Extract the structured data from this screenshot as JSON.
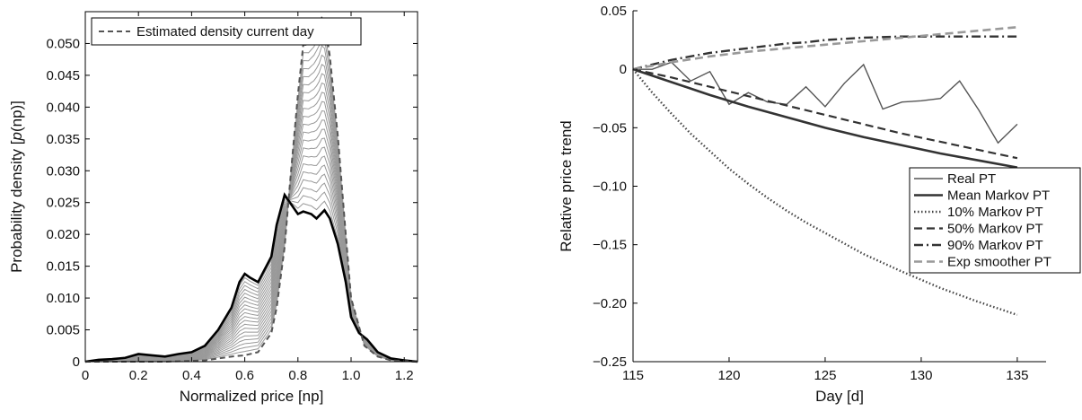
{
  "chart_data": [
    {
      "type": "line",
      "xlabel": "Normalized price [np]",
      "ylabel_prefix": "Probability density [",
      "ylabel_italic": "p",
      "ylabel_suffix": "(np)]",
      "xlim": [
        0,
        1.25
      ],
      "ylim": [
        0,
        0.055
      ],
      "xticks": [
        0,
        0.2,
        0.4,
        0.6,
        0.8,
        1.0,
        1.2
      ],
      "xtick_labels": [
        "0",
        "0.2",
        "0.4",
        "0.6",
        "0.8",
        "1.0",
        "1.2"
      ],
      "yticks": [
        0,
        0.005,
        0.01,
        0.015,
        0.02,
        0.025,
        0.03,
        0.035,
        0.04,
        0.045,
        0.05
      ],
      "ytick_labels": [
        "0",
        "0.005",
        "0.010",
        "0.015",
        "0.020",
        "0.025",
        "0.030",
        "0.035",
        "0.040",
        "0.045",
        "0.050"
      ],
      "legend_position": "top-left",
      "intermediate_curve_count": 20,
      "colors": {
        "initial": "#000000",
        "intermediate": "#999999",
        "current": "#555555"
      },
      "series": [
        {
          "name": "",
          "style": "solid-thick",
          "x": [
            0,
            0.05,
            0.1,
            0.15,
            0.2,
            0.25,
            0.3,
            0.35,
            0.4,
            0.45,
            0.5,
            0.55,
            0.58,
            0.6,
            0.62,
            0.65,
            0.7,
            0.72,
            0.75,
            0.77,
            0.8,
            0.82,
            0.85,
            0.87,
            0.9,
            0.92,
            0.95,
            0.98,
            1.0,
            1.03,
            1.06,
            1.1,
            1.15,
            1.2,
            1.25
          ],
          "y": [
            0,
            0.0003,
            0.0004,
            0.0006,
            0.0012,
            0.001,
            0.0008,
            0.0012,
            0.0015,
            0.0025,
            0.005,
            0.0085,
            0.0125,
            0.0138,
            0.0132,
            0.0125,
            0.0165,
            0.0215,
            0.0262,
            0.025,
            0.0232,
            0.0236,
            0.0232,
            0.0225,
            0.0238,
            0.0225,
            0.0185,
            0.0125,
            0.007,
            0.0045,
            0.0035,
            0.0015,
            0.0005,
            0.0002,
            0
          ]
        },
        {
          "name": "Estimated density current day",
          "style": "dashed",
          "x": [
            0,
            0.3,
            0.45,
            0.5,
            0.55,
            0.6,
            0.65,
            0.7,
            0.72,
            0.75,
            0.77,
            0.8,
            0.82,
            0.84,
            0.86,
            0.88,
            0.89,
            0.9,
            0.92,
            0.95,
            0.98,
            1.0,
            1.05,
            1.1,
            1.15,
            1.25
          ],
          "y": [
            0,
            0,
            0.0002,
            0.0005,
            0.0008,
            0.001,
            0.0015,
            0.0045,
            0.0085,
            0.018,
            0.028,
            0.042,
            0.0498,
            0.0498,
            0.0508,
            0.0525,
            0.054,
            0.0535,
            0.048,
            0.0355,
            0.02,
            0.01,
            0.0025,
            0.0008,
            0.0002,
            0
          ]
        }
      ]
    },
    {
      "type": "line",
      "xlabel": "Day [d]",
      "ylabel": "Relative price trend",
      "xlim": [
        115,
        136.5
      ],
      "ylim": [
        -0.25,
        0.05
      ],
      "xticks": [
        115,
        120,
        125,
        130,
        135
      ],
      "xtick_labels": [
        "115",
        "120",
        "125",
        "130",
        "135"
      ],
      "yticks": [
        -0.25,
        -0.2,
        -0.15,
        -0.1,
        -0.05,
        0,
        0.05
      ],
      "ytick_labels": [
        "−0.25",
        "−0.20",
        "−0.15",
        "−0.10",
        "−0.05",
        "0",
        "0.05"
      ],
      "legend_position": "right",
      "series": [
        {
          "name": "Real PT",
          "style": "solid-thin",
          "color": "#555555",
          "x": [
            115,
            116,
            117,
            118,
            119,
            120,
            121,
            122,
            123,
            124,
            125,
            126,
            127,
            128,
            129,
            130,
            131,
            132,
            133,
            134,
            135
          ],
          "y": [
            0,
            0,
            0.006,
            -0.01,
            -0.002,
            -0.03,
            -0.02,
            -0.028,
            -0.03,
            -0.015,
            -0.032,
            -0.012,
            0.004,
            -0.034,
            -0.028,
            -0.027,
            -0.025,
            -0.01,
            -0.035,
            -0.063,
            -0.047
          ]
        },
        {
          "name": "Mean Markov PT",
          "style": "solid-thick",
          "color": "#333333",
          "x": [
            115,
            117,
            119,
            121,
            123,
            125,
            127,
            129,
            131,
            133,
            135
          ],
          "y": [
            0,
            -0.011,
            -0.022,
            -0.032,
            -0.041,
            -0.05,
            -0.058,
            -0.065,
            -0.072,
            -0.078,
            -0.084
          ]
        },
        {
          "name": "10% Markov PT",
          "style": "dotted",
          "color": "#444444",
          "x": [
            115,
            116,
            117,
            118,
            119,
            120,
            121,
            122,
            123,
            124,
            125,
            127,
            129,
            131,
            133,
            135
          ],
          "y": [
            0,
            -0.02,
            -0.038,
            -0.055,
            -0.07,
            -0.085,
            -0.098,
            -0.11,
            -0.121,
            -0.131,
            -0.14,
            -0.158,
            -0.173,
            -0.187,
            -0.199,
            -0.21
          ]
        },
        {
          "name": "50% Markov PT",
          "style": "dashed",
          "color": "#333333",
          "x": [
            115,
            117,
            119,
            121,
            123,
            125,
            127,
            129,
            131,
            133,
            135
          ],
          "y": [
            0,
            -0.007,
            -0.015,
            -0.023,
            -0.031,
            -0.039,
            -0.047,
            -0.055,
            -0.062,
            -0.069,
            -0.076
          ]
        },
        {
          "name": "90% Markov PT",
          "style": "dashdot",
          "color": "#333333",
          "x": [
            115,
            116,
            117,
            118,
            119,
            120,
            121,
            122,
            123,
            124,
            125,
            127,
            129,
            131,
            133,
            135
          ],
          "y": [
            0,
            0.004,
            0.008,
            0.011,
            0.014,
            0.016,
            0.018,
            0.02,
            0.022,
            0.023,
            0.025,
            0.027,
            0.028,
            0.028,
            0.028,
            0.028
          ]
        },
        {
          "name": "Exp smoother PT",
          "style": "dashed-light",
          "color": "#999999",
          "x": [
            115,
            117,
            119,
            121,
            123,
            125,
            127,
            129,
            131,
            133,
            135
          ],
          "y": [
            0,
            0.006,
            0.011,
            0.015,
            0.018,
            0.021,
            0.024,
            0.027,
            0.03,
            0.033,
            0.036
          ]
        }
      ]
    }
  ]
}
